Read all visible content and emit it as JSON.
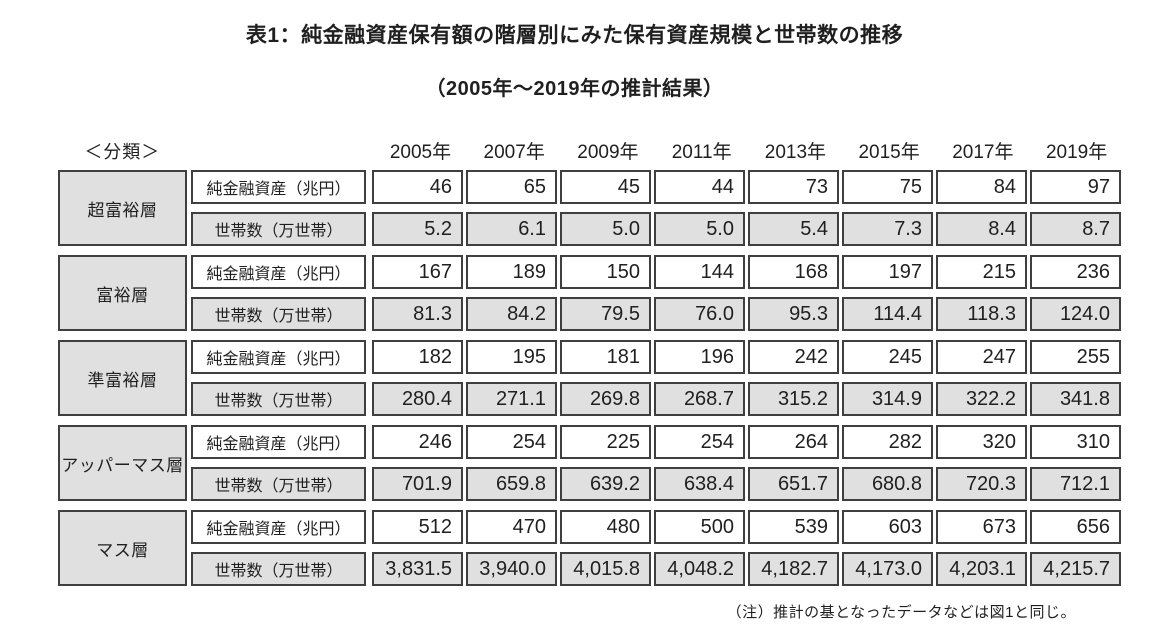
{
  "chart_data": {
    "type": "table",
    "title": "表1：純金融資産保有額の階層別にみた保有資産規模と世帯数の推移",
    "subtitle": "（2005年〜2019年の推計結果）",
    "note": "（注）推計の基となったデータなどは図1と同じ。",
    "category_header": "＜分類＞",
    "years": [
      "2005年",
      "2007年",
      "2009年",
      "2011年",
      "2013年",
      "2015年",
      "2017年",
      "2019年"
    ],
    "row_labels": {
      "asset": "純金融資産（兆円）",
      "household": "世帯数（万世帯）"
    },
    "tiers": [
      {
        "name": "超富裕層",
        "assets": [
          "46",
          "65",
          "45",
          "44",
          "73",
          "75",
          "84",
          "97"
        ],
        "households": [
          "5.2",
          "6.1",
          "5.0",
          "5.0",
          "5.4",
          "7.3",
          "8.4",
          "8.7"
        ]
      },
      {
        "name": "富裕層",
        "assets": [
          "167",
          "189",
          "150",
          "144",
          "168",
          "197",
          "215",
          "236"
        ],
        "households": [
          "81.3",
          "84.2",
          "79.5",
          "76.0",
          "95.3",
          "114.4",
          "118.3",
          "124.0"
        ]
      },
      {
        "name": "準富裕層",
        "assets": [
          "182",
          "195",
          "181",
          "196",
          "242",
          "245",
          "247",
          "255"
        ],
        "households": [
          "280.4",
          "271.1",
          "269.8",
          "268.7",
          "315.2",
          "314.9",
          "322.2",
          "341.8"
        ]
      },
      {
        "name": "アッパーマス層",
        "assets": [
          "246",
          "254",
          "225",
          "254",
          "264",
          "282",
          "320",
          "310"
        ],
        "households": [
          "701.9",
          "659.8",
          "639.2",
          "638.4",
          "651.7",
          "680.8",
          "720.3",
          "712.1"
        ]
      },
      {
        "name": "マス層",
        "assets": [
          "512",
          "470",
          "480",
          "500",
          "539",
          "603",
          "673",
          "656"
        ],
        "households": [
          "3,831.5",
          "3,940.0",
          "4,015.8",
          "4,048.2",
          "4,182.7",
          "4,173.0",
          "4,203.1",
          "4,215.7"
        ]
      }
    ],
    "colors": {
      "shaded_cell": "#e0e0e0",
      "border": "#3f3f3f",
      "text": "#1f1f1f",
      "background": "#ffffff"
    }
  }
}
